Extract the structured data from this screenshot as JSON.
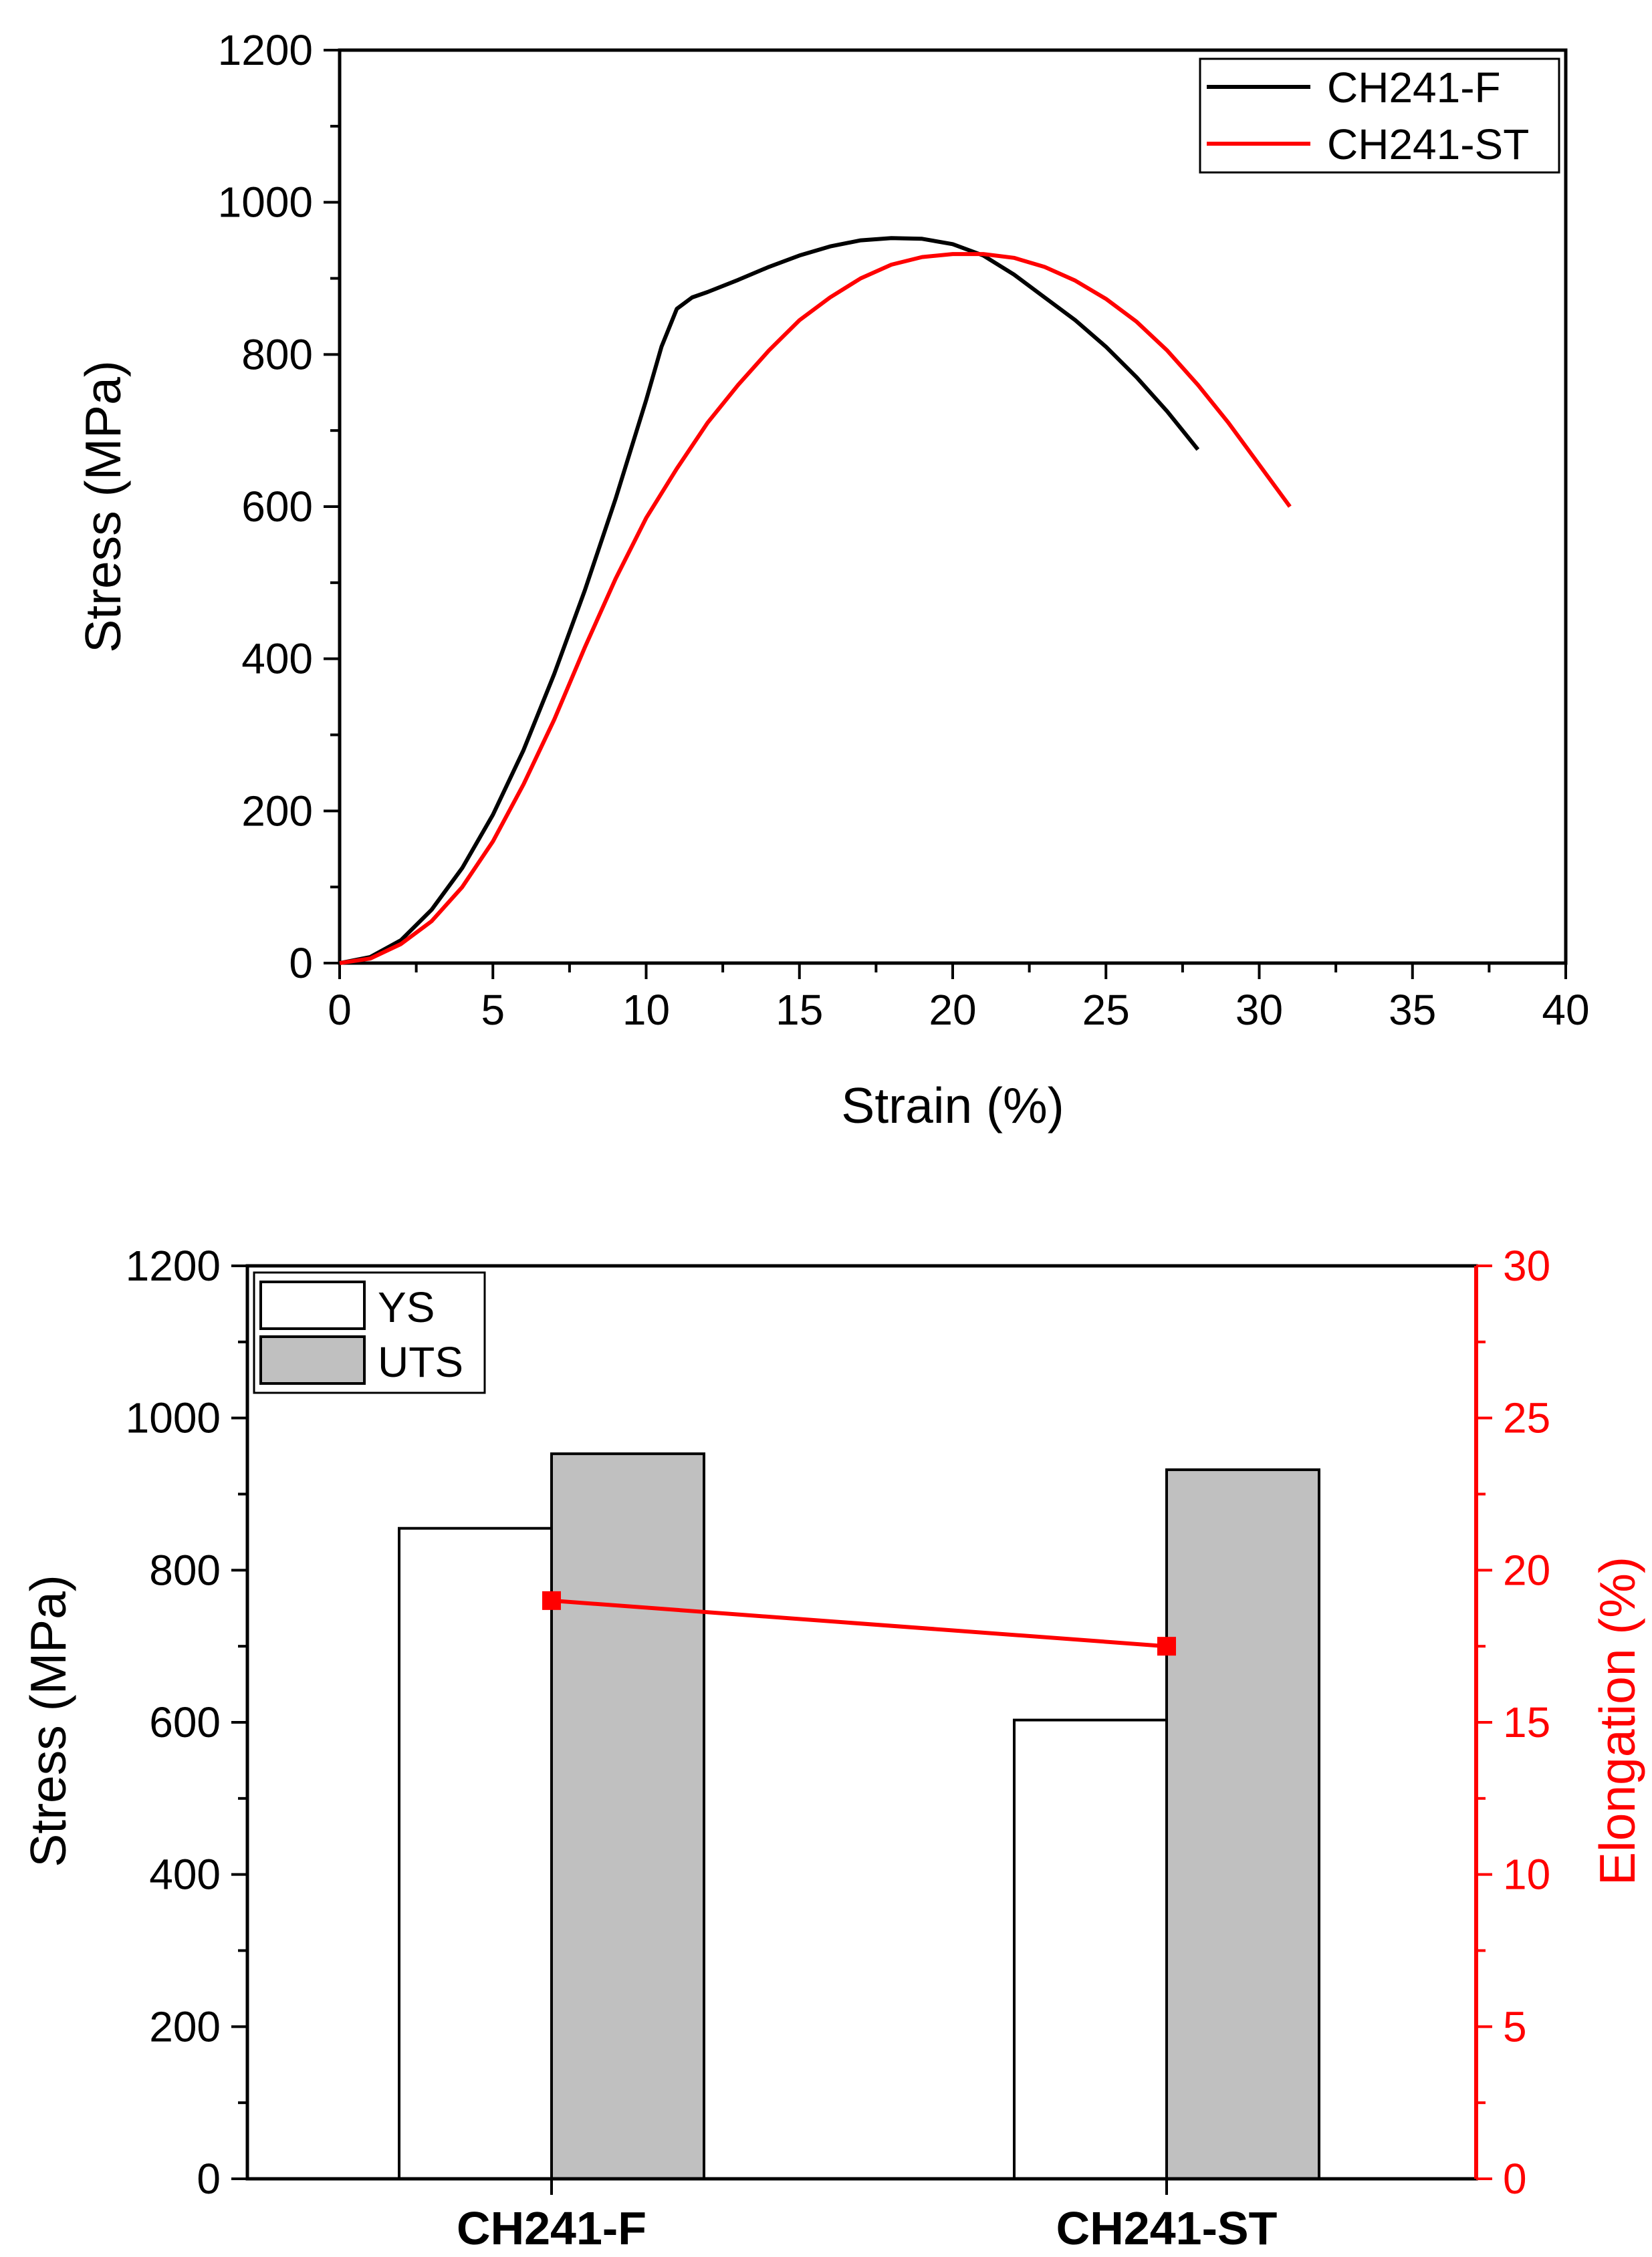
{
  "figure": {
    "colors": {
      "axis": "#000000",
      "series_f": "#000000",
      "series_st": "#ff0000",
      "bar_ys": "#ffffff",
      "bar_uts": "#c0c0c0",
      "elong": "#ff0000"
    }
  },
  "chart_data": [
    {
      "type": "line",
      "xlabel": "Strain (%)",
      "ylabel": "Stress (MPa)",
      "xlim": [
        0,
        40
      ],
      "ylim": [
        0,
        1200
      ],
      "xticks": [
        0,
        5,
        10,
        15,
        20,
        25,
        30,
        35,
        40
      ],
      "yticks": [
        0,
        200,
        400,
        600,
        800,
        1000,
        1200
      ],
      "x_tick_labels": [
        "0",
        "5",
        "10",
        "15",
        "20",
        "25",
        "30",
        "35",
        "40"
      ],
      "y_tick_labels": [
        "0",
        "200",
        "400",
        "600",
        "800",
        "1000",
        "1200"
      ],
      "legend": {
        "position": "top-right",
        "entries": [
          "CH241-F",
          "CH241-ST"
        ]
      },
      "series": [
        {
          "name": "CH241-F",
          "color": "#000000",
          "points": [
            [
              0,
              0
            ],
            [
              1,
              8
            ],
            [
              2,
              30
            ],
            [
              3,
              70
            ],
            [
              4,
              125
            ],
            [
              5,
              195
            ],
            [
              6,
              280
            ],
            [
              7,
              380
            ],
            [
              8,
              490
            ],
            [
              9,
              610
            ],
            [
              10,
              740
            ],
            [
              10.5,
              810
            ],
            [
              11,
              860
            ],
            [
              11.5,
              875
            ],
            [
              12,
              882
            ],
            [
              13,
              898
            ],
            [
              14,
              915
            ],
            [
              15,
              930
            ],
            [
              16,
              942
            ],
            [
              17,
              950
            ],
            [
              18,
              953
            ],
            [
              19,
              952
            ],
            [
              20,
              945
            ],
            [
              21,
              930
            ],
            [
              22,
              905
            ],
            [
              23,
              875
            ],
            [
              24,
              845
            ],
            [
              25,
              810
            ],
            [
              26,
              770
            ],
            [
              27,
              725
            ],
            [
              28,
              675
            ]
          ]
        },
        {
          "name": "CH241-ST",
          "color": "#ff0000",
          "points": [
            [
              0,
              0
            ],
            [
              1,
              6
            ],
            [
              2,
              25
            ],
            [
              3,
              55
            ],
            [
              4,
              100
            ],
            [
              5,
              160
            ],
            [
              6,
              235
            ],
            [
              7,
              320
            ],
            [
              8,
              415
            ],
            [
              9,
              505
            ],
            [
              10,
              585
            ],
            [
              11,
              650
            ],
            [
              12,
              710
            ],
            [
              13,
              760
            ],
            [
              14,
              805
            ],
            [
              15,
              845
            ],
            [
              16,
              875
            ],
            [
              17,
              900
            ],
            [
              18,
              918
            ],
            [
              19,
              928
            ],
            [
              20,
              932
            ],
            [
              21,
              932
            ],
            [
              22,
              927
            ],
            [
              23,
              915
            ],
            [
              24,
              897
            ],
            [
              25,
              873
            ],
            [
              26,
              843
            ],
            [
              27,
              805
            ],
            [
              28,
              760
            ],
            [
              29,
              710
            ],
            [
              30,
              655
            ],
            [
              31,
              600
            ]
          ]
        }
      ]
    },
    {
      "type": "bar",
      "categories": [
        "CH241-F",
        "CH241-ST"
      ],
      "ylabel": "Stress (MPa)",
      "y2label": "Elongation (%)",
      "ylim": [
        0,
        1200
      ],
      "y2lim": [
        0,
        30
      ],
      "yticks": [
        0,
        200,
        400,
        600,
        800,
        1000,
        1200
      ],
      "y2ticks": [
        0,
        5,
        10,
        15,
        20,
        25,
        30
      ],
      "y_tick_labels": [
        "0",
        "200",
        "400",
        "600",
        "800",
        "1000",
        "1200"
      ],
      "y2_tick_labels": [
        "0",
        "5",
        "10",
        "15",
        "20",
        "25",
        "30"
      ],
      "legend": {
        "position": "top-left",
        "entries": [
          "YS",
          "UTS"
        ]
      },
      "series": [
        {
          "name": "YS",
          "color": "#ffffff",
          "values": [
            855,
            603
          ]
        },
        {
          "name": "UTS",
          "color": "#c0c0c0",
          "values": [
            953,
            932
          ]
        }
      ],
      "line_series": {
        "name": "Elongation",
        "color": "#ff0000",
        "axis": "right",
        "values": [
          19.0,
          17.5
        ]
      }
    }
  ]
}
